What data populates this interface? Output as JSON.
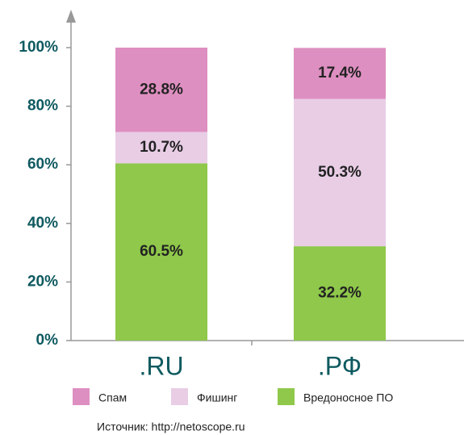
{
  "chart_data": {
    "type": "stacked_bar",
    "categories": [
      ".RU",
      ".РФ"
    ],
    "series": [
      {
        "name": "Спам",
        "color": "#de8fc1",
        "values": [
          28.8,
          17.4
        ],
        "value_labels": [
          "28.8%",
          "17.4%"
        ]
      },
      {
        "name": "Фишинг",
        "color": "#e8cde5",
        "values": [
          10.7,
          50.3
        ],
        "value_labels": [
          "10.7%",
          "50.3%"
        ]
      },
      {
        "name": "Вредоносное ПО",
        "color": "#8fc84a",
        "values": [
          60.5,
          32.2
        ],
        "value_labels": [
          "60.5%",
          "32.2%"
        ]
      }
    ],
    "stack_order": "bottom_last_series",
    "ylim": [
      0,
      100
    ],
    "yticks": [
      {
        "value": 0,
        "label": "0%"
      },
      {
        "value": 20,
        "label": "20%"
      },
      {
        "value": 40,
        "label": "40%"
      },
      {
        "value": 60,
        "label": "60%"
      },
      {
        "value": 80,
        "label": "80%"
      },
      {
        "value": 100,
        "label": "100%"
      }
    ],
    "grid": false,
    "legend": "bottom",
    "source": "Источник: http://netoscope.ru"
  }
}
